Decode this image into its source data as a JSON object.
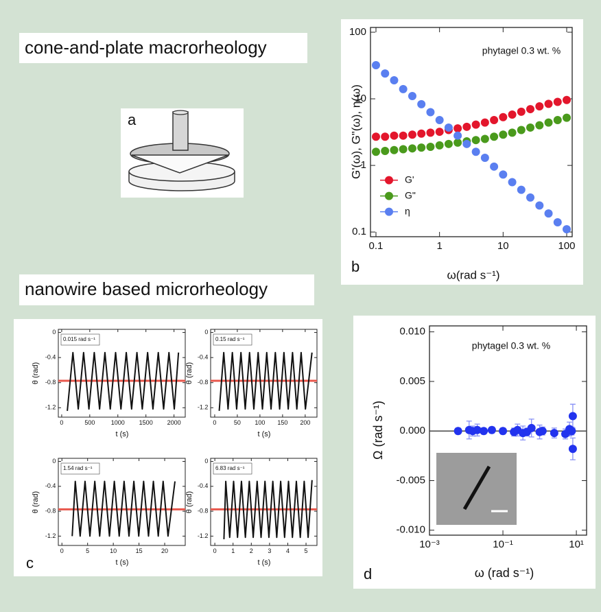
{
  "headings": [
    "cone-and-plate macrorheology",
    "nanowire based microrheology"
  ],
  "panel_labels": [
    "a",
    "b",
    "c",
    "d"
  ],
  "chart_data": [
    {
      "type": "scatter",
      "annotation": "phytagel 0.3 wt. %",
      "xlabel": "ω(rad s⁻¹)",
      "ylabel": "G'(ω), G\"(ω), η(ω)",
      "xscale": "log",
      "yscale": "log",
      "x": [
        0.1,
        0.139,
        0.193,
        0.268,
        0.373,
        0.518,
        0.72,
        1,
        1.39,
        1.93,
        2.68,
        3.73,
        5.18,
        7.2,
        10,
        13.9,
        19.3,
        26.8,
        37.3,
        51.8,
        72,
        100
      ],
      "series": [
        {
          "name": "G'",
          "color": "#e3162c",
          "values": [
            2.7,
            2.7,
            2.8,
            2.8,
            2.9,
            3.0,
            3.1,
            3.2,
            3.4,
            3.6,
            3.8,
            4.1,
            4.4,
            4.8,
            5.3,
            5.8,
            6.4,
            7.0,
            7.7,
            8.4,
            9.0,
            9.6
          ]
        },
        {
          "name": "G\"",
          "color": "#4a9a1c",
          "values": [
            1.6,
            1.65,
            1.7,
            1.75,
            1.8,
            1.85,
            1.9,
            2.0,
            2.1,
            2.2,
            2.3,
            2.4,
            2.5,
            2.7,
            2.9,
            3.1,
            3.4,
            3.7,
            4.0,
            4.4,
            4.8,
            5.2
          ]
        },
        {
          "name": "η",
          "color": "#5a7ff0",
          "values": [
            32,
            24,
            19,
            14,
            11,
            8.3,
            6.3,
            4.8,
            3.7,
            2.8,
            2.1,
            1.6,
            1.3,
            0.96,
            0.73,
            0.56,
            0.43,
            0.33,
            0.25,
            0.19,
            0.14,
            0.11
          ]
        }
      ],
      "xlim": [
        0.082,
        122
      ],
      "ylim": [
        0.085,
        118
      ],
      "xticks": [
        0.1,
        1,
        10,
        100
      ],
      "yticks": [
        0.1,
        1,
        10,
        100
      ],
      "legend": "lower left"
    },
    {
      "type": "line",
      "annotation": "0.015 rad s⁻¹",
      "xlabel": "t (s)",
      "ylabel": "θ (rad)",
      "color": "#111111",
      "hline": -0.77,
      "hline_color": "#e8574c",
      "x": [
        100,
        200,
        295,
        390,
        485,
        580,
        675,
        770,
        865,
        960,
        1055,
        1150,
        1245,
        1340,
        1435,
        1530,
        1625,
        1720,
        1815,
        1910,
        2005,
        2080
      ],
      "values": [
        -1.25,
        -0.32,
        -1.22,
        -0.32,
        -1.22,
        -0.32,
        -1.22,
        -0.32,
        -1.22,
        -0.32,
        -1.22,
        -0.32,
        -1.22,
        -0.32,
        -1.22,
        -0.32,
        -1.22,
        -0.32,
        -1.22,
        -0.32,
        -1.22,
        -0.32
      ],
      "xlim": [
        -60,
        2200
      ],
      "ylim": [
        -1.35,
        0.05
      ],
      "xticks": [
        0,
        500,
        1000,
        1500,
        2000
      ],
      "yticks": [
        0,
        -0.4,
        -0.8,
        -1.2
      ]
    },
    {
      "type": "line",
      "annotation": "0.15 rad s⁻¹",
      "xlabel": "t (s)",
      "ylabel": "θ (rad)",
      "color": "#111111",
      "hline": -0.77,
      "hline_color": "#e8574c",
      "x": [
        10,
        20,
        29.5,
        39,
        48.5,
        58,
        67.5,
        77,
        86.5,
        96,
        105.5,
        115,
        124.5,
        134,
        143.5,
        153,
        162.5,
        172,
        181.5,
        191,
        200.5,
        215
      ],
      "values": [
        -1.25,
        -0.32,
        -1.22,
        -0.32,
        -1.22,
        -0.32,
        -1.22,
        -0.32,
        -1.22,
        -0.32,
        -1.22,
        -0.32,
        -1.22,
        -0.32,
        -1.22,
        -0.32,
        -1.22,
        -0.32,
        -1.22,
        -0.32,
        -1.22,
        -0.32
      ],
      "xlim": [
        -9,
        226
      ],
      "ylim": [
        -1.35,
        0.05
      ],
      "xticks": [
        0,
        50,
        100,
        150,
        200
      ],
      "yticks": [
        0,
        -0.4,
        -0.8,
        -1.2
      ]
    },
    {
      "type": "line",
      "annotation": "1.54 rad s⁻¹",
      "xlabel": "t (s)",
      "ylabel": "θ (rad)",
      "color": "#111111",
      "hline": -0.77,
      "hline_color": "#e8574c",
      "x": [
        2,
        2.6,
        3.55,
        4.5,
        5.45,
        6.4,
        7.35,
        8.3,
        9.25,
        10.2,
        11.15,
        12.1,
        13.05,
        14,
        14.95,
        15.9,
        16.85,
        17.8,
        18.75,
        19.7,
        20.65,
        22
      ],
      "values": [
        -1.2,
        -0.32,
        -1.2,
        -0.32,
        -1.2,
        -0.32,
        -1.2,
        -0.32,
        -1.2,
        -0.32,
        -1.2,
        -0.32,
        -1.2,
        -0.32,
        -1.2,
        -0.32,
        -1.2,
        -0.32,
        -1.2,
        -0.32,
        -1.2,
        -0.32
      ],
      "xlim": [
        -0.7,
        24
      ],
      "ylim": [
        -1.35,
        0.05
      ],
      "xticks": [
        0,
        5,
        10,
        15,
        20
      ],
      "yticks": [
        0,
        -0.4,
        -0.8,
        -1.2
      ]
    },
    {
      "type": "line",
      "annotation": "6.83 rad s⁻¹",
      "xlabel": "t (s)",
      "ylabel": "θ (rad)",
      "color": "#111111",
      "hline": -0.77,
      "hline_color": "#e8574c",
      "x": [
        0.5,
        0.6,
        0.815,
        1.03,
        1.245,
        1.46,
        1.675,
        1.89,
        2.105,
        2.32,
        2.535,
        2.75,
        2.965,
        3.18,
        3.395,
        3.61,
        3.825,
        4.04,
        4.255,
        4.47,
        4.685,
        4.9,
        5.115,
        5.33
      ],
      "values": [
        -1.25,
        -0.32,
        -1.22,
        -0.32,
        -1.22,
        -0.32,
        -1.22,
        -0.32,
        -1.22,
        -0.32,
        -1.22,
        -0.32,
        -1.22,
        -0.32,
        -1.22,
        -0.32,
        -1.22,
        -0.32,
        -1.22,
        -0.32,
        -1.22,
        -0.32,
        -1.22,
        -0.3
      ],
      "xlim": [
        -0.23,
        5.6
      ],
      "ylim": [
        -1.35,
        0.05
      ],
      "xticks": [
        0,
        1,
        2,
        3,
        4,
        5
      ],
      "yticks": [
        0,
        -0.4,
        -0.8,
        -1.2
      ]
    },
    {
      "type": "scatter",
      "annotation": "phytagel 0.3 wt. %",
      "xlabel": "ω (rad s⁻¹)",
      "ylabel": "Ω (rad s⁻¹)",
      "xscale": "log",
      "color": "#2233ee",
      "hline": 0,
      "hline_color": "#444444",
      "x": [
        0.006,
        0.012,
        0.015,
        0.02,
        0.03,
        0.05,
        0.1,
        0.2,
        0.25,
        0.35,
        0.45,
        0.6,
        1.0,
        1.2,
        2.5,
        5,
        6.5,
        7.5,
        8,
        8
      ],
      "values": [
        0,
        0.0001,
        0,
        0.0001,
        0,
        0.0001,
        0,
        -0.0001,
        0.0001,
        -0.0002,
        -0.0001,
        0.0003,
        -0.0001,
        0,
        -0.0002,
        -0.0003,
        0.0002,
        0,
        0.0015,
        -0.0018
      ],
      "errors": [
        0.0003,
        0.0009,
        0.0005,
        0.0006,
        0.0003,
        0.0003,
        0.0003,
        0.0004,
        0.0006,
        0.0007,
        0.0004,
        0.0009,
        0.0007,
        0.0004,
        0.0005,
        0.0005,
        0.0007,
        0.0004,
        0.0012,
        0.0011
      ],
      "xlim": [
        0.001,
        19
      ],
      "ylim": [
        -0.0105,
        0.0106
      ],
      "xticks": [
        {
          "value": 0.001,
          "label": "10⁻³"
        },
        {
          "value": 0.1,
          "label": "10⁻¹"
        },
        {
          "value": 10,
          "label": "10¹"
        }
      ],
      "yticks": [
        {
          "value": 0.01,
          "label": "0.010"
        },
        {
          "value": 0.005,
          "label": "0.005"
        },
        {
          "value": 0,
          "label": "0.000"
        },
        {
          "value": -0.005,
          "label": "-0.005"
        },
        {
          "value": -0.01,
          "label": "-0.010"
        }
      ]
    }
  ]
}
